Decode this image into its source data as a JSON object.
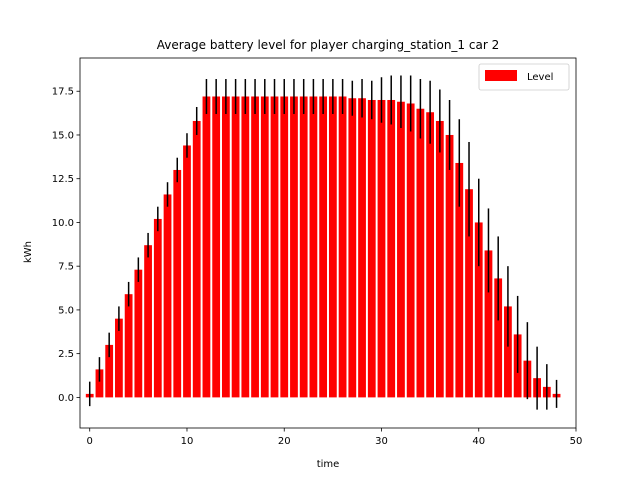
{
  "chart_data": {
    "type": "bar",
    "title": "Average battery level for player charging_station_1 car 2",
    "xlabel": "time",
    "ylabel": "kWh",
    "xlim": [
      -1,
      50
    ],
    "ylim": [
      -1.75,
      19.4
    ],
    "xticks": [
      0,
      10,
      20,
      30,
      40,
      50
    ],
    "yticks": [
      0.0,
      2.5,
      5.0,
      7.5,
      10.0,
      12.5,
      15.0,
      17.5
    ],
    "xtick_labels": [
      "0",
      "10",
      "20",
      "30",
      "40",
      "50"
    ],
    "ytick_labels": [
      "0.0",
      "2.5",
      "5.0",
      "7.5",
      "10.0",
      "12.5",
      "15.0",
      "17.5"
    ],
    "grid": false,
    "legend_position": "top-right",
    "bar_color": "#ff0000",
    "error_color": "#000000",
    "series": [
      {
        "name": "Level",
        "x": [
          0,
          1,
          2,
          3,
          4,
          5,
          6,
          7,
          8,
          9,
          10,
          11,
          12,
          13,
          14,
          15,
          16,
          17,
          18,
          19,
          20,
          21,
          22,
          23,
          24,
          25,
          26,
          27,
          28,
          29,
          30,
          31,
          32,
          33,
          34,
          35,
          36,
          37,
          38,
          39,
          40,
          41,
          42,
          43,
          44,
          45,
          46,
          47,
          48
        ],
        "values": [
          0.2,
          1.6,
          3.0,
          4.5,
          5.9,
          7.3,
          8.7,
          10.2,
          11.6,
          13.0,
          14.4,
          15.8,
          17.2,
          17.2,
          17.2,
          17.2,
          17.2,
          17.2,
          17.2,
          17.2,
          17.2,
          17.2,
          17.2,
          17.2,
          17.2,
          17.2,
          17.2,
          17.1,
          17.1,
          17.0,
          17.0,
          17.0,
          16.9,
          16.8,
          16.5,
          16.3,
          15.8,
          15.0,
          13.4,
          11.9,
          10.0,
          8.4,
          6.8,
          5.2,
          3.6,
          2.1,
          1.1,
          0.6,
          0.2
        ],
        "errors": [
          0.7,
          0.7,
          0.7,
          0.7,
          0.7,
          0.7,
          0.7,
          0.7,
          0.7,
          0.7,
          0.7,
          0.8,
          1.0,
          1.0,
          1.0,
          1.0,
          1.0,
          1.0,
          1.0,
          1.0,
          1.0,
          1.0,
          1.0,
          1.0,
          1.0,
          1.0,
          1.0,
          1.0,
          1.1,
          1.1,
          1.3,
          1.4,
          1.5,
          1.6,
          1.7,
          1.8,
          1.8,
          2.0,
          2.5,
          2.7,
          2.5,
          2.4,
          2.4,
          2.3,
          2.2,
          2.2,
          1.8,
          1.3,
          0.8
        ]
      }
    ]
  }
}
